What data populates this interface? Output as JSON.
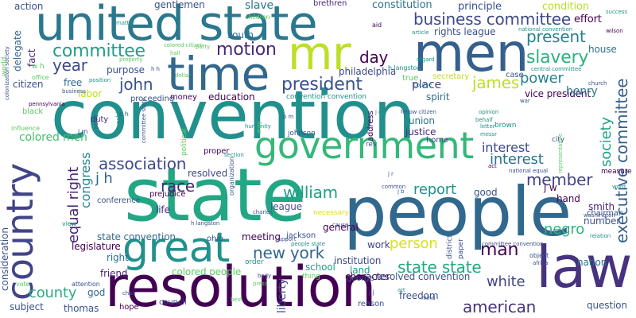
{
  "words": [
    {
      "text": "convention",
      "color": "#21908d"
    },
    {
      "text": "state",
      "color": "#22a785"
    },
    {
      "text": "people",
      "color": "#31688e"
    },
    {
      "text": "resolution",
      "color": "#440154"
    },
    {
      "text": "united state",
      "color": "#2a788e"
    },
    {
      "text": "men",
      "color": "#355f8d"
    },
    {
      "text": "mr",
      "color": "#bddf26"
    },
    {
      "text": "time",
      "color": "#31688e"
    },
    {
      "text": "government",
      "color": "#35b779"
    },
    {
      "text": "great",
      "color": "#21918c"
    },
    {
      "text": "law",
      "color": "#46327e"
    },
    {
      "text": "country",
      "color": "#414487"
    },
    {
      "text": "colored men",
      "color": "#44bf70"
    },
    {
      "text": "business committee",
      "color": "#3e4989"
    },
    {
      "text": "committee",
      "color": "#1f9e89"
    },
    {
      "text": "motion",
      "color": "#482878"
    },
    {
      "text": "president",
      "color": "#3b528b"
    },
    {
      "text": "day",
      "color": "#440154"
    },
    {
      "text": "slavery",
      "color": "#2db27d"
    },
    {
      "text": "present",
      "color": "#26828e"
    },
    {
      "text": "year",
      "color": "#3e4989"
    },
    {
      "text": "john",
      "color": "#3b528b"
    },
    {
      "text": "james",
      "color": "#bddf26"
    },
    {
      "text": "power",
      "color": "#26828e"
    },
    {
      "text": "association",
      "color": "#3e4989"
    },
    {
      "text": "interest",
      "color": "#2c728e"
    },
    {
      "text": "society",
      "color": "#1fa187"
    },
    {
      "text": "executive committee",
      "color": "#355f8d"
    },
    {
      "text": "member",
      "color": "#414487"
    },
    {
      "text": "race",
      "color": "#482878"
    },
    {
      "text": "william",
      "color": "#1f9e89"
    },
    {
      "text": "report",
      "color": "#21918c"
    },
    {
      "text": "new york",
      "color": "#31688e"
    },
    {
      "text": "person",
      "color": "#d8e219"
    },
    {
      "text": "man",
      "color": "#440154"
    },
    {
      "text": "negro",
      "color": "#2db27d"
    },
    {
      "text": "state state",
      "color": "#23a983"
    },
    {
      "text": "white",
      "color": "#414487"
    },
    {
      "text": "american",
      "color": "#46337e"
    },
    {
      "text": "county",
      "color": "#28ae80"
    },
    {
      "text": "equal right",
      "color": "#482475"
    },
    {
      "text": "congress",
      "color": "#25858e"
    },
    {
      "text": "j h",
      "color": "#31688e"
    },
    {
      "text": "colored people",
      "color": "#5ec962"
    },
    {
      "text": "state convention",
      "color": "#31688e"
    },
    {
      "text": "rights league",
      "color": "#3b528b"
    },
    {
      "text": "vice president",
      "color": "#440154"
    },
    {
      "text": "place",
      "color": "#433e85"
    },
    {
      "text": "henry",
      "color": "#2a788e"
    },
    {
      "text": "house",
      "color": "#2c728e"
    },
    {
      "text": "effort",
      "color": "#440154"
    },
    {
      "text": "condition",
      "color": "#b5de2b"
    },
    {
      "text": "principle",
      "color": "#3b528b"
    },
    {
      "text": "constitution",
      "color": "#2a788e"
    },
    {
      "text": "slave",
      "color": "#2a788e"
    },
    {
      "text": "action",
      "color": "#3b528b"
    },
    {
      "text": "gentlemen",
      "color": "#3b528b"
    },
    {
      "text": "brethren",
      "color": "#482878"
    },
    {
      "text": "delegate",
      "color": "#31688e"
    },
    {
      "text": "fact",
      "color": "#482878"
    },
    {
      "text": "citizen",
      "color": "#3b528b"
    },
    {
      "text": "free",
      "color": "#31688e"
    },
    {
      "text": "labor",
      "color": "#bddf26"
    },
    {
      "text": "purpose",
      "color": "#3b528b"
    },
    {
      "text": "philadelphia",
      "color": "#3e4989"
    },
    {
      "text": "education",
      "color": "#440154"
    },
    {
      "text": "south",
      "color": "#2c728e"
    },
    {
      "text": "duty",
      "color": "#482878"
    },
    {
      "text": "union",
      "color": "#2c728e"
    },
    {
      "text": "justice",
      "color": "#472c7a"
    },
    {
      "text": "resolved",
      "color": "#3e4989"
    },
    {
      "text": "league",
      "color": "#3b528b"
    },
    {
      "text": "general",
      "color": "#440154"
    },
    {
      "text": "meeting",
      "color": "#440154"
    },
    {
      "text": "work",
      "color": "#414487"
    },
    {
      "text": "right",
      "color": "#2c728e"
    },
    {
      "text": "friend",
      "color": "#482878"
    },
    {
      "text": "god",
      "color": "#31688e"
    },
    {
      "text": "thomas",
      "color": "#3b528b"
    },
    {
      "text": "subject",
      "color": "#3b528b"
    },
    {
      "text": "liberty",
      "color": "#414487"
    },
    {
      "text": "school",
      "color": "#1fa187"
    },
    {
      "text": "land",
      "color": "#1f9e89"
    },
    {
      "text": "freedom",
      "color": "#3b528b"
    },
    {
      "text": "question",
      "color": "#39568c"
    },
    {
      "text": "nation",
      "color": "#2c728e"
    },
    {
      "text": "hand",
      "color": "#440154"
    },
    {
      "text": "good",
      "color": "#3b528b"
    },
    {
      "text": "j w",
      "color": "#440154"
    },
    {
      "text": "number",
      "color": "#3b528b"
    },
    {
      "text": "smith",
      "color": "#482878"
    },
    {
      "text": "life",
      "color": "#472c7a"
    },
    {
      "text": "home",
      "color": "#3e4989"
    },
    {
      "text": "character",
      "color": "#440154"
    },
    {
      "text": "resolved convention",
      "color": "#3b528b"
    },
    {
      "text": "institution",
      "color": "#3e4989"
    },
    {
      "text": "george",
      "color": "#3b528b"
    },
    {
      "text": "legislature",
      "color": "#440154"
    },
    {
      "text": "consideration",
      "color": "#3b528b"
    },
    {
      "text": "proceeding",
      "color": "#3b528b"
    },
    {
      "text": "money",
      "color": "#440154"
    },
    {
      "text": "conference",
      "color": "#3b528b"
    },
    {
      "text": "prejudice",
      "color": "#440154"
    },
    {
      "text": "proper",
      "color": "#440154"
    },
    {
      "text": "ohio",
      "color": "#3b528b"
    },
    {
      "text": "jackson",
      "color": "#3b528b"
    },
    {
      "text": "address",
      "color": "#440154"
    },
    {
      "text": "interest",
      "color": "#3e4989"
    },
    {
      "text": "secretary",
      "color": "#bddf26"
    },
    {
      "text": "spirit",
      "color": "#2c728e"
    },
    {
      "text": "true",
      "color": "#5ec962"
    },
    {
      "text": "case",
      "color": "#3b528b"
    },
    {
      "text": "chairman",
      "color": "#3b528b"
    },
    {
      "text": "council",
      "color": "#3b528b"
    },
    {
      "text": "reason",
      "color": "#3b528b"
    },
    {
      "text": "hope",
      "color": "#440154"
    },
    {
      "text": "attention",
      "color": "#3b528b"
    },
    {
      "text": "vote",
      "color": "#5ec962"
    },
    {
      "text": "influence",
      "color": "#5ec962"
    },
    {
      "text": "black",
      "color": "#5ec962"
    },
    {
      "text": "office",
      "color": "#5ec962"
    },
    {
      "text": "world",
      "color": "#5ec962"
    },
    {
      "text": "colored citizen",
      "color": "#5ec962"
    },
    {
      "text": "children",
      "color": "#5ec962"
    },
    {
      "text": "matter",
      "color": "#21918c"
    },
    {
      "text": "aid",
      "color": "#440154"
    },
    {
      "text": "article",
      "color": "#21918c"
    },
    {
      "text": "national convention",
      "color": "#21918c"
    },
    {
      "text": "wilson",
      "color": "#440154"
    },
    {
      "text": "success",
      "color": "#21918c"
    },
    {
      "text": "h langston",
      "color": "#21918c"
    },
    {
      "text": "regard",
      "color": "#21918c"
    },
    {
      "text": "central committee",
      "color": "#21918c"
    },
    {
      "text": "position",
      "color": "#21918c"
    },
    {
      "text": "business",
      "color": "#3b528b"
    },
    {
      "text": "dollar",
      "color": "#5ec962"
    },
    {
      "text": "property",
      "color": "#5ec962"
    },
    {
      "text": "convention convention",
      "color": "#21918c"
    },
    {
      "text": "course",
      "color": "#21918c"
    },
    {
      "text": "opinion",
      "color": "#21918c"
    },
    {
      "text": "behalf",
      "color": "#21918c"
    },
    {
      "text": "church",
      "color": "#3b528b"
    },
    {
      "text": "war",
      "color": "#3b528b"
    },
    {
      "text": "fellow citizen",
      "color": "#3b528b"
    },
    {
      "text": "letter",
      "color": "#21918c"
    },
    {
      "text": "brown",
      "color": "#21918c"
    },
    {
      "text": "messr",
      "color": "#21918c"
    },
    {
      "text": "city",
      "color": "#3b528b"
    },
    {
      "text": "national equal",
      "color": "#3b528b"
    },
    {
      "text": "act",
      "color": "#440154"
    },
    {
      "text": "common",
      "color": "#3b528b"
    },
    {
      "text": "measure",
      "color": "#440154"
    },
    {
      "text": "word",
      "color": "#21918c"
    },
    {
      "text": "washington",
      "color": "#3b528b"
    },
    {
      "text": "relation",
      "color": "#21918c"
    },
    {
      "text": "committee convention",
      "color": "#3b528b"
    },
    {
      "text": "object",
      "color": "#3b528b"
    },
    {
      "text": "africa",
      "color": "#3b528b"
    },
    {
      "text": "support",
      "color": "#3b528b"
    },
    {
      "text": "people state",
      "color": "#21918c"
    },
    {
      "text": "press",
      "color": "#5ec962"
    },
    {
      "text": "body",
      "color": "#3b528b"
    },
    {
      "text": "thing",
      "color": "#5ec962"
    },
    {
      "text": "order",
      "color": "#21918c"
    },
    {
      "text": "mind",
      "color": "#3b528b"
    },
    {
      "text": "chair",
      "color": "#3b528b"
    },
    {
      "text": "best",
      "color": "#5ec962"
    },
    {
      "text": "art",
      "color": "#21918c"
    },
    {
      "text": "j j",
      "color": "#3b528b"
    },
    {
      "text": "c h",
      "color": "#3b528b"
    },
    {
      "text": "p m",
      "color": "#3b528b"
    },
    {
      "text": "j m",
      "color": "#3b528b"
    },
    {
      "text": "h h",
      "color": "#3b528b"
    },
    {
      "text": "w h",
      "color": "#5ec962"
    },
    {
      "text": "j b",
      "color": "#3b528b"
    },
    {
      "text": "j r",
      "color": "#3b528b"
    },
    {
      "text": "j c",
      "color": "#21918c"
    },
    {
      "text": "rev",
      "color": "#3b528b"
    },
    {
      "text": "cause",
      "color": "#3b528b"
    },
    {
      "text": "charles",
      "color": "#3b528b"
    },
    {
      "text": "party",
      "color": "#5ec962"
    },
    {
      "text": "hall",
      "color": "#5ec962"
    },
    {
      "text": "public",
      "color": "#21918c"
    },
    {
      "text": "point",
      "color": "#3b528b"
    },
    {
      "text": "political",
      "color": "#5ec962"
    },
    {
      "text": "humanity",
      "color": "#21918c"
    },
    {
      "text": "section",
      "color": "#21918c"
    },
    {
      "text": "way",
      "color": "#5ec962"
    },
    {
      "text": "district",
      "color": "#3b528b"
    },
    {
      "text": "paper",
      "color": "#3b528b"
    },
    {
      "text": "organization",
      "color": "#3b528b"
    },
    {
      "text": "representative",
      "color": "#5ec962"
    },
    {
      "text": "necessary",
      "color": "#d8e219"
    },
    {
      "text": "committee state",
      "color": "#3b528b"
    },
    {
      "text": "colonization society",
      "color": "#3b528b"
    },
    {
      "text": "pennsylvania",
      "color": "#440154"
    },
    {
      "text": "h langston",
      "color": "#3b528b"
    },
    {
      "text": "johnson",
      "color": "#3b528b"
    },
    {
      "text": "view",
      "color": "#21918c"
    }
  ]
}
